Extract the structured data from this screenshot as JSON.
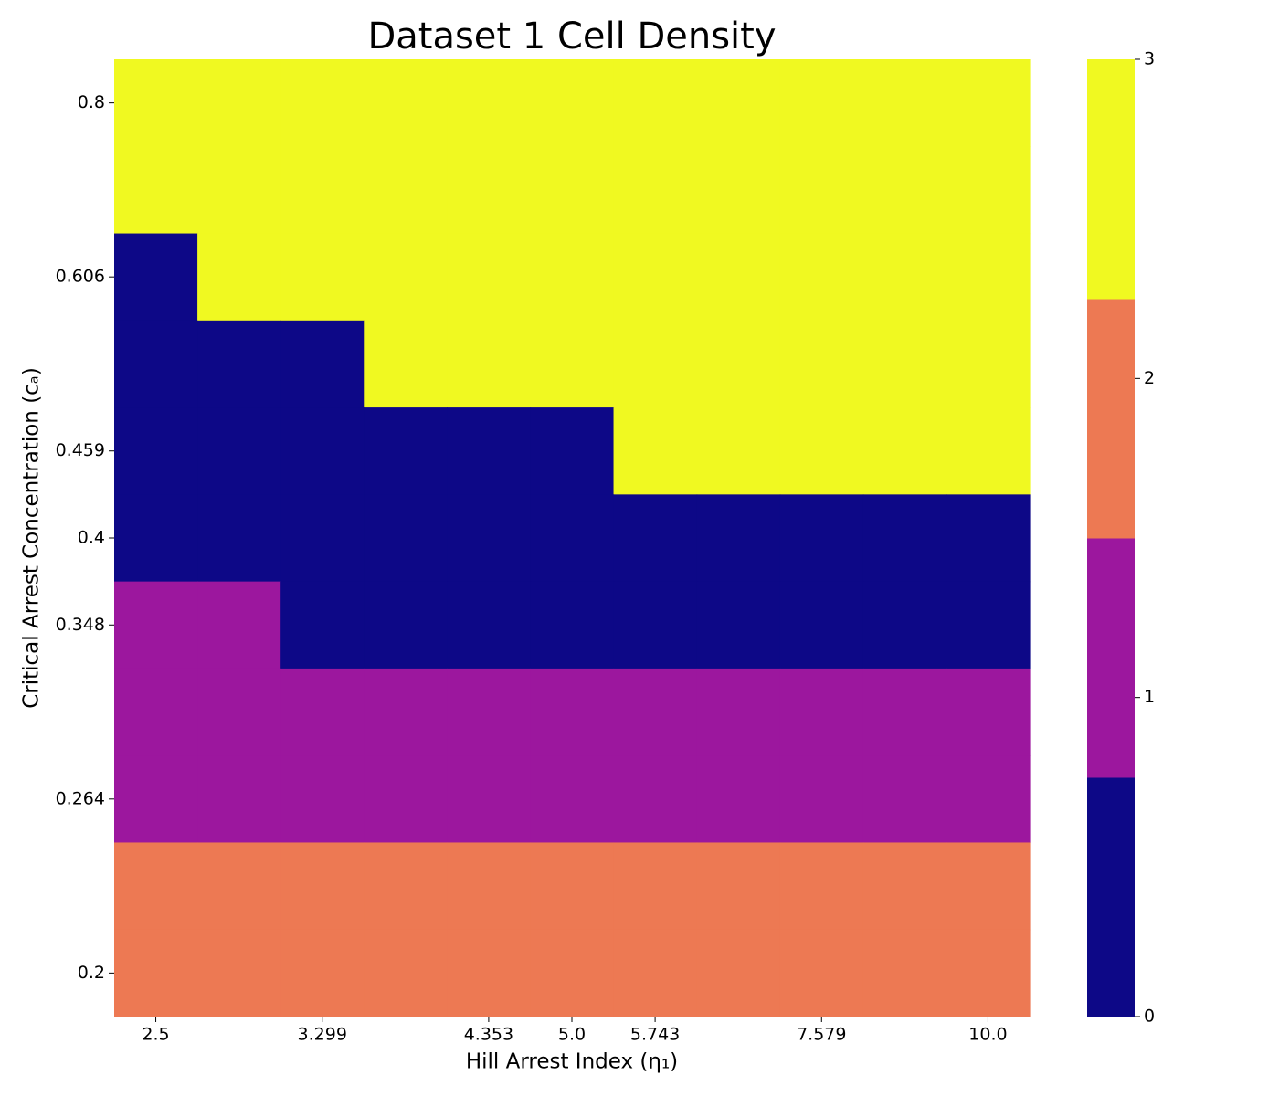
{
  "chart_data": {
    "type": "heatmap",
    "title": "Dataset 1 Cell Density",
    "xlabel": "Hill Arrest Index (η₁)",
    "ylabel": "Critical Arrest Concentration (cₐ)",
    "x": [
      "2.5",
      null,
      "3.299",
      null,
      "4.353",
      "5.0",
      "5.743",
      null,
      "7.579",
      null,
      "10.0"
    ],
    "y": [
      "0.8",
      null,
      "0.606",
      null,
      "0.459",
      "0.4",
      "0.348",
      null,
      "0.264",
      null,
      "0.2"
    ],
    "z": [
      [
        3,
        3,
        3,
        3,
        3,
        3,
        3,
        3,
        3,
        3,
        3
      ],
      [
        3,
        3,
        3,
        3,
        3,
        3,
        3,
        3,
        3,
        3,
        3
      ],
      [
        0,
        3,
        3,
        3,
        3,
        3,
        3,
        3,
        3,
        3,
        3
      ],
      [
        0,
        0,
        0,
        3,
        3,
        3,
        3,
        3,
        3,
        3,
        3
      ],
      [
        0,
        0,
        0,
        0,
        0,
        0,
        3,
        3,
        3,
        3,
        3
      ],
      [
        0,
        0,
        0,
        0,
        0,
        0,
        0,
        0,
        0,
        0,
        0
      ],
      [
        1,
        1,
        0,
        0,
        0,
        0,
        0,
        0,
        0,
        0,
        0
      ],
      [
        1,
        1,
        1,
        1,
        1,
        1,
        1,
        1,
        1,
        1,
        1
      ],
      [
        1,
        1,
        1,
        1,
        1,
        1,
        1,
        1,
        1,
        1,
        1
      ],
      [
        2,
        2,
        2,
        2,
        2,
        2,
        2,
        2,
        2,
        2,
        2
      ],
      [
        2,
        2,
        2,
        2,
        2,
        2,
        2,
        2,
        2,
        2,
        2
      ]
    ],
    "colors": [
      "#0d0887",
      "#9c179e",
      "#ed7953",
      "#f0f921"
    ],
    "clim": [
      0,
      3
    ],
    "cticks": [
      0,
      1,
      2,
      3
    ]
  }
}
